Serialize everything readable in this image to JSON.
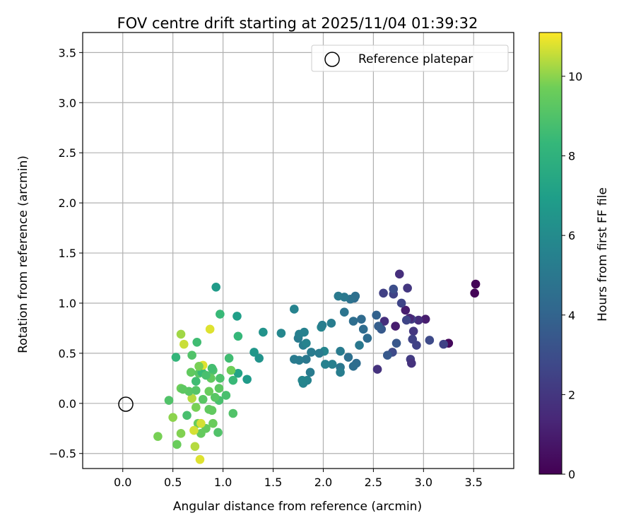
{
  "chart_data": {
    "type": "scatter",
    "title": "FOV centre drift starting at 2025/11/04 01:39:32",
    "xlabel": "Angular distance from reference (arcmin)",
    "ylabel": "Rotation from reference (arcmin)",
    "xlim": [
      -0.4,
      3.9
    ],
    "ylim": [
      -0.65,
      3.7
    ],
    "xticks": [
      "0.0",
      "0.5",
      "1.0",
      "1.5",
      "2.0",
      "2.5",
      "3.0",
      "3.5"
    ],
    "yticks": [
      "−0.5",
      "0.0",
      "0.5",
      "1.0",
      "1.5",
      "2.0",
      "2.5",
      "3.0",
      "3.5"
    ],
    "grid": true,
    "legend": {
      "position": "top-right",
      "entries": [
        "Reference platepar"
      ]
    },
    "colormap": "viridis",
    "colorbar": {
      "label": "Hours from first FF file",
      "range": [
        0,
        11.1
      ],
      "ticks": [
        "0",
        "2",
        "4",
        "6",
        "8",
        "10"
      ]
    },
    "reference": {
      "x": 0.0,
      "y": 0.0
    },
    "points": [
      {
        "x": 3.52,
        "y": 1.19,
        "hours": 0.1
      },
      {
        "x": 3.51,
        "y": 1.1,
        "hours": 0.1
      },
      {
        "x": 3.25,
        "y": 0.6,
        "hours": 0.3
      },
      {
        "x": 3.2,
        "y": 0.59,
        "hours": 2.5
      },
      {
        "x": 3.06,
        "y": 0.63,
        "hours": 2.8
      },
      {
        "x": 3.02,
        "y": 0.84,
        "hours": 1.0
      },
      {
        "x": 2.95,
        "y": 0.83,
        "hours": 1.6
      },
      {
        "x": 2.93,
        "y": 0.58,
        "hours": 2.5
      },
      {
        "x": 2.9,
        "y": 0.72,
        "hours": 2.0
      },
      {
        "x": 2.88,
        "y": 0.84,
        "hours": 2.3
      },
      {
        "x": 2.86,
        "y": 0.85,
        "hours": 1.4
      },
      {
        "x": 2.83,
        "y": 0.83,
        "hours": 2.6
      },
      {
        "x": 2.82,
        "y": 0.93,
        "hours": 1.0
      },
      {
        "x": 2.84,
        "y": 1.15,
        "hours": 2.0
      },
      {
        "x": 2.76,
        "y": 1.29,
        "hours": 1.7
      },
      {
        "x": 2.78,
        "y": 1.0,
        "hours": 2.6
      },
      {
        "x": 2.89,
        "y": 0.64,
        "hours": 2.5
      },
      {
        "x": 2.87,
        "y": 0.44,
        "hours": 2.2
      },
      {
        "x": 2.88,
        "y": 0.4,
        "hours": 1.8
      },
      {
        "x": 2.72,
        "y": 0.77,
        "hours": 1.0
      },
      {
        "x": 2.73,
        "y": 0.6,
        "hours": 3.4
      },
      {
        "x": 2.69,
        "y": 0.51,
        "hours": 2.8
      },
      {
        "x": 2.64,
        "y": 0.48,
        "hours": 3.5
      },
      {
        "x": 2.58,
        "y": 0.74,
        "hours": 3.5
      },
      {
        "x": 2.61,
        "y": 0.82,
        "hours": 1.7
      },
      {
        "x": 2.54,
        "y": 0.34,
        "hours": 1.8
      },
      {
        "x": 2.53,
        "y": 0.88,
        "hours": 3.9
      },
      {
        "x": 2.55,
        "y": 0.77,
        "hours": 3.7
      },
      {
        "x": 2.6,
        "y": 1.1,
        "hours": 2.4
      },
      {
        "x": 2.7,
        "y": 1.09,
        "hours": 2.5
      },
      {
        "x": 2.7,
        "y": 1.14,
        "hours": 3.0
      },
      {
        "x": 2.44,
        "y": 0.65,
        "hours": 4.4
      },
      {
        "x": 2.4,
        "y": 0.74,
        "hours": 4.4
      },
      {
        "x": 2.38,
        "y": 0.84,
        "hours": 4.3
      },
      {
        "x": 2.36,
        "y": 0.58,
        "hours": 5.0
      },
      {
        "x": 2.33,
        "y": 0.4,
        "hours": 4.4
      },
      {
        "x": 2.3,
        "y": 0.37,
        "hours": 4.5
      },
      {
        "x": 2.3,
        "y": 0.82,
        "hours": 4.5
      },
      {
        "x": 2.31,
        "y": 1.05,
        "hours": 4.3
      },
      {
        "x": 2.32,
        "y": 1.07,
        "hours": 4.6
      },
      {
        "x": 2.27,
        "y": 1.04,
        "hours": 4.7
      },
      {
        "x": 2.25,
        "y": 0.46,
        "hours": 4.6
      },
      {
        "x": 2.21,
        "y": 0.91,
        "hours": 4.8
      },
      {
        "x": 2.21,
        "y": 1.06,
        "hours": 5.0
      },
      {
        "x": 2.15,
        "y": 1.07,
        "hours": 5.1
      },
      {
        "x": 2.17,
        "y": 0.52,
        "hours": 5.2
      },
      {
        "x": 2.17,
        "y": 0.36,
        "hours": 4.9
      },
      {
        "x": 2.17,
        "y": 0.31,
        "hours": 5.3
      },
      {
        "x": 2.08,
        "y": 0.8,
        "hours": 5.3
      },
      {
        "x": 2.09,
        "y": 0.39,
        "hours": 5.4
      },
      {
        "x": 2.02,
        "y": 0.39,
        "hours": 5.5
      },
      {
        "x": 1.98,
        "y": 0.76,
        "hours": 5.7
      },
      {
        "x": 1.99,
        "y": 0.78,
        "hours": 5.3
      },
      {
        "x": 2.01,
        "y": 0.52,
        "hours": 5.7
      },
      {
        "x": 1.96,
        "y": 0.5,
        "hours": 5.2
      },
      {
        "x": 1.88,
        "y": 0.51,
        "hours": 5.2
      },
      {
        "x": 1.87,
        "y": 0.31,
        "hours": 5.2
      },
      {
        "x": 1.84,
        "y": 0.23,
        "hours": 5.6
      },
      {
        "x": 1.8,
        "y": 0.2,
        "hours": 5.6
      },
      {
        "x": 1.79,
        "y": 0.23,
        "hours": 5.7
      },
      {
        "x": 1.83,
        "y": 0.44,
        "hours": 5.0
      },
      {
        "x": 1.76,
        "y": 0.43,
        "hours": 5.2
      },
      {
        "x": 1.71,
        "y": 0.44,
        "hours": 5.2
      },
      {
        "x": 1.8,
        "y": 0.58,
        "hours": 5.3
      },
      {
        "x": 1.75,
        "y": 0.65,
        "hours": 5.2
      },
      {
        "x": 1.76,
        "y": 0.69,
        "hours": 5.4
      },
      {
        "x": 1.81,
        "y": 0.71,
        "hours": 5.5
      },
      {
        "x": 1.83,
        "y": 0.6,
        "hours": 5.6
      },
      {
        "x": 1.71,
        "y": 0.94,
        "hours": 5.6
      },
      {
        "x": 1.58,
        "y": 0.7,
        "hours": 5.8
      },
      {
        "x": 1.4,
        "y": 0.71,
        "hours": 6.4
      },
      {
        "x": 1.36,
        "y": 0.45,
        "hours": 6.4
      },
      {
        "x": 1.31,
        "y": 0.51,
        "hours": 6.6
      },
      {
        "x": 1.24,
        "y": 0.24,
        "hours": 6.8
      },
      {
        "x": 1.15,
        "y": 0.3,
        "hours": 7.2
      },
      {
        "x": 1.14,
        "y": 0.87,
        "hours": 7.0
      },
      {
        "x": 0.93,
        "y": 1.16,
        "hours": 6.8
      },
      {
        "x": 0.97,
        "y": 0.89,
        "hours": 8.4
      },
      {
        "x": 1.15,
        "y": 0.67,
        "hours": 8.3
      },
      {
        "x": 1.06,
        "y": 0.45,
        "hours": 8.6
      },
      {
        "x": 1.1,
        "y": 0.23,
        "hours": 8.4
      },
      {
        "x": 1.08,
        "y": 0.33,
        "hours": 9.7
      },
      {
        "x": 1.03,
        "y": 0.08,
        "hours": 8.8
      },
      {
        "x": 1.1,
        "y": -0.1,
        "hours": 9.0
      },
      {
        "x": 0.97,
        "y": 0.25,
        "hours": 8.9
      },
      {
        "x": 0.96,
        "y": 0.15,
        "hours": 9.3
      },
      {
        "x": 0.96,
        "y": 0.03,
        "hours": 8.8
      },
      {
        "x": 0.95,
        "y": -0.29,
        "hours": 9.0
      },
      {
        "x": 0.92,
        "y": 0.06,
        "hours": 9.2
      },
      {
        "x": 0.9,
        "y": 0.33,
        "hours": 8.9
      },
      {
        "x": 0.89,
        "y": 0.35,
        "hours": 8.7
      },
      {
        "x": 0.88,
        "y": 0.25,
        "hours": 9.4
      },
      {
        "x": 0.86,
        "y": 0.12,
        "hours": 9.6
      },
      {
        "x": 0.89,
        "y": -0.07,
        "hours": 9.4
      },
      {
        "x": 0.9,
        "y": -0.2,
        "hours": 9.6
      },
      {
        "x": 0.86,
        "y": -0.06,
        "hours": 9.4
      },
      {
        "x": 0.83,
        "y": -0.25,
        "hours": 9.5
      },
      {
        "x": 0.8,
        "y": 0.04,
        "hours": 9.2
      },
      {
        "x": 0.78,
        "y": -0.3,
        "hours": 9.5
      },
      {
        "x": 0.75,
        "y": -0.2,
        "hours": 9.6
      },
      {
        "x": 0.78,
        "y": -0.2,
        "hours": 10.7
      },
      {
        "x": 0.71,
        "y": -0.27,
        "hours": 10.7
      },
      {
        "x": 0.72,
        "y": -0.43,
        "hours": 10.4
      },
      {
        "x": 0.77,
        "y": -0.56,
        "hours": 10.8
      },
      {
        "x": 0.58,
        "y": -0.3,
        "hours": 9.9
      },
      {
        "x": 0.54,
        "y": -0.41,
        "hours": 9.6
      },
      {
        "x": 0.35,
        "y": -0.33,
        "hours": 9.8
      },
      {
        "x": 0.5,
        "y": -0.14,
        "hours": 10.0
      },
      {
        "x": 0.64,
        "y": -0.12,
        "hours": 8.8
      },
      {
        "x": 0.73,
        "y": -0.04,
        "hours": 9.8
      },
      {
        "x": 0.69,
        "y": 0.05,
        "hours": 10.4
      },
      {
        "x": 0.46,
        "y": 0.03,
        "hours": 9.0
      },
      {
        "x": 0.66,
        "y": 0.12,
        "hours": 9.2
      },
      {
        "x": 0.73,
        "y": 0.13,
        "hours": 9.1
      },
      {
        "x": 0.58,
        "y": 0.15,
        "hours": 9.7
      },
      {
        "x": 0.6,
        "y": 0.14,
        "hours": 9.3
      },
      {
        "x": 0.73,
        "y": 0.22,
        "hours": 8.6
      },
      {
        "x": 0.68,
        "y": 0.31,
        "hours": 9.4
      },
      {
        "x": 0.76,
        "y": 0.3,
        "hours": 9.2
      },
      {
        "x": 0.79,
        "y": 0.31,
        "hours": 8.4
      },
      {
        "x": 0.8,
        "y": 0.38,
        "hours": 10.8
      },
      {
        "x": 0.83,
        "y": 0.28,
        "hours": 8.8
      },
      {
        "x": 0.76,
        "y": 0.37,
        "hours": 9.8
      },
      {
        "x": 0.53,
        "y": 0.46,
        "hours": 8.2
      },
      {
        "x": 0.69,
        "y": 0.48,
        "hours": 9.0
      },
      {
        "x": 0.74,
        "y": 0.61,
        "hours": 8.6
      },
      {
        "x": 0.58,
        "y": 0.69,
        "hours": 10.2
      },
      {
        "x": 0.61,
        "y": 0.59,
        "hours": 10.6
      },
      {
        "x": 0.87,
        "y": 0.74,
        "hours": 10.8
      }
    ]
  }
}
